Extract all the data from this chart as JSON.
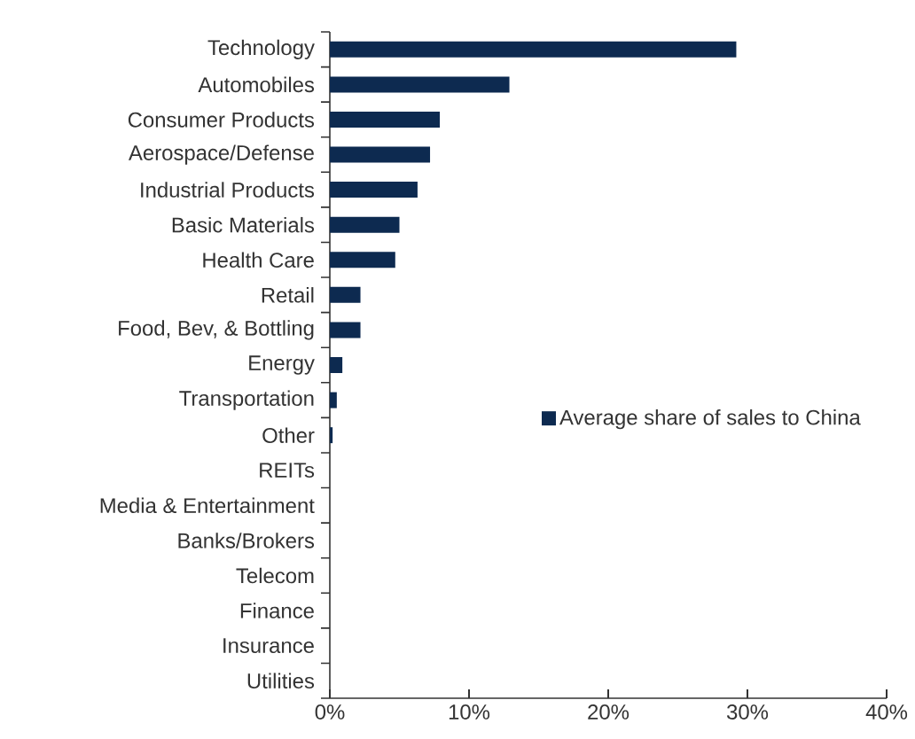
{
  "chart_data": {
    "type": "bar",
    "orientation": "horizontal",
    "categories": [
      "Technology",
      "Automobiles",
      "Consumer Products",
      "Aerospace/Defense",
      "Industrial Products",
      "Basic Materials",
      "Health Care",
      "Retail",
      "Food, Bev, & Bottling",
      "Energy",
      "Transportation",
      "Other",
      "REITs",
      "Media & Entertainment",
      "Banks/Brokers",
      "Telecom",
      "Finance",
      "Insurance",
      "Utilities"
    ],
    "series": [
      {
        "name": "Average share of sales to China",
        "color": "#0d2a50",
        "values": [
          29.2,
          12.9,
          7.9,
          7.2,
          6.3,
          5.0,
          4.7,
          2.2,
          2.2,
          0.9,
          0.5,
          0.2,
          0,
          0,
          0,
          0,
          0,
          0,
          0
        ]
      }
    ],
    "xlim": [
      0,
      40
    ],
    "xticks": [
      {
        "value": 0,
        "label": "0%"
      },
      {
        "value": 10,
        "label": "10%"
      },
      {
        "value": 20,
        "label": "20%"
      },
      {
        "value": 30,
        "label": "30%"
      },
      {
        "value": 40,
        "label": "40%"
      }
    ],
    "legend": "right",
    "grid": false
  }
}
